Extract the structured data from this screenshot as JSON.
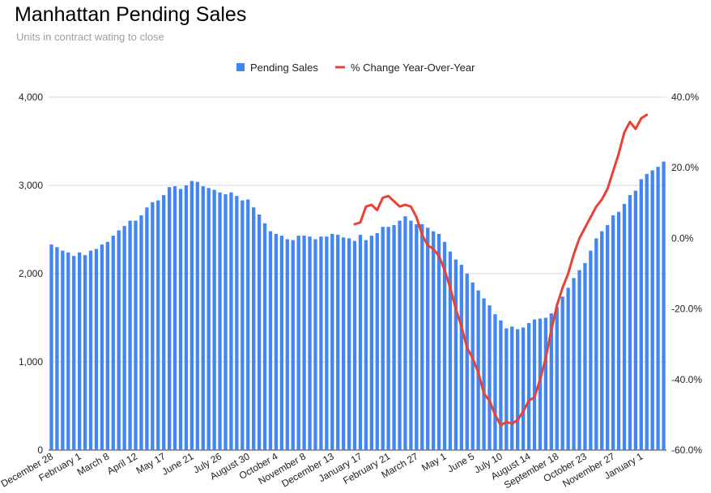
{
  "chart_data": {
    "type": "bar+line",
    "title": "Manhattan Pending Sales",
    "subtitle": "Units in contract wating to close",
    "colors": {
      "bars": "#4285f4",
      "line": "#e94235",
      "grid": "#d9d9d9"
    },
    "legend": {
      "position": "top",
      "items": [
        {
          "label": "Pending Sales",
          "kind": "bar"
        },
        {
          "label": "% Change Year-Over-Year",
          "kind": "line"
        }
      ]
    },
    "y_left": {
      "ticks": [
        "0",
        "1,000",
        "2,000",
        "3,000",
        "4,000"
      ],
      "min": 0,
      "max": 4000
    },
    "y_right": {
      "ticks": [
        "-60.0%",
        "-40.0%",
        "-20.0%",
        "0.0%",
        "20.0%",
        "40.0%"
      ],
      "min": -60,
      "max": 40
    },
    "x_tick_labels": [
      {
        "index": 0,
        "label": "December 28"
      },
      {
        "index": 5,
        "label": "February 1"
      },
      {
        "index": 10,
        "label": "March 8"
      },
      {
        "index": 15,
        "label": "April 12"
      },
      {
        "index": 20,
        "label": "May 17"
      },
      {
        "index": 25,
        "label": "June 21"
      },
      {
        "index": 30,
        "label": "July 26"
      },
      {
        "index": 35,
        "label": "August 30"
      },
      {
        "index": 40,
        "label": "October 4"
      },
      {
        "index": 45,
        "label": "November 8"
      },
      {
        "index": 50,
        "label": "December 13"
      },
      {
        "index": 55,
        "label": "January 17"
      },
      {
        "index": 60,
        "label": "February 21"
      },
      {
        "index": 65,
        "label": "March 27"
      },
      {
        "index": 70,
        "label": "May 1"
      },
      {
        "index": 75,
        "label": "June 5"
      },
      {
        "index": 80,
        "label": "July 10"
      },
      {
        "index": 85,
        "label": "August 14"
      },
      {
        "index": 90,
        "label": "September 18"
      },
      {
        "index": 95,
        "label": "October 23"
      },
      {
        "index": 100,
        "label": "November 27"
      },
      {
        "index": 105,
        "label": "January 1"
      }
    ],
    "series": [
      {
        "name": "Pending Sales",
        "type": "bar",
        "axis": "left",
        "values": [
          2330,
          2300,
          2260,
          2240,
          2200,
          2240,
          2210,
          2260,
          2280,
          2330,
          2360,
          2430,
          2490,
          2540,
          2600,
          2600,
          2660,
          2750,
          2810,
          2830,
          2890,
          2980,
          2990,
          2960,
          3000,
          3050,
          3040,
          2990,
          2970,
          2950,
          2920,
          2900,
          2920,
          2880,
          2830,
          2840,
          2750,
          2670,
          2570,
          2480,
          2450,
          2430,
          2390,
          2380,
          2430,
          2430,
          2420,
          2390,
          2420,
          2420,
          2450,
          2440,
          2410,
          2400,
          2370,
          2440,
          2380,
          2430,
          2460,
          2530,
          2530,
          2550,
          2600,
          2650,
          2600,
          2560,
          2560,
          2520,
          2480,
          2450,
          2360,
          2250,
          2160,
          2100,
          2000,
          1900,
          1810,
          1720,
          1640,
          1540,
          1470,
          1380,
          1400,
          1370,
          1390,
          1440,
          1480,
          1490,
          1500,
          1550,
          1620,
          1740,
          1840,
          1950,
          2040,
          2120,
          2260,
          2400,
          2480,
          2550,
          2660,
          2700,
          2790,
          2890,
          2940,
          3070,
          3130,
          3170,
          3210,
          3270
        ]
      },
      {
        "name": "% Change Year-Over-Year",
        "type": "line",
        "axis": "right",
        "values": [
          null,
          null,
          null,
          null,
          null,
          null,
          null,
          null,
          null,
          null,
          null,
          null,
          null,
          null,
          null,
          null,
          null,
          null,
          null,
          null,
          null,
          null,
          null,
          null,
          null,
          null,
          null,
          null,
          null,
          null,
          null,
          null,
          null,
          null,
          null,
          null,
          null,
          null,
          null,
          null,
          null,
          null,
          null,
          null,
          null,
          null,
          null,
          null,
          null,
          null,
          null,
          null,
          null,
          null,
          4,
          4.5,
          9,
          9.5,
          8,
          11.5,
          12,
          10.5,
          9,
          9.5,
          9,
          6,
          1,
          -2,
          -3,
          -5,
          -9,
          -14,
          -20,
          -25,
          -31,
          -34,
          -38,
          -44,
          -46,
          -50,
          -53,
          -52,
          -52.5,
          -51.5,
          -49,
          -46,
          -45,
          -40,
          -34,
          -26,
          -19,
          -14,
          -10,
          -4.5,
          0,
          3,
          6,
          9,
          11,
          14,
          19,
          24,
          30,
          33,
          31,
          34,
          35
        ]
      }
    ]
  }
}
